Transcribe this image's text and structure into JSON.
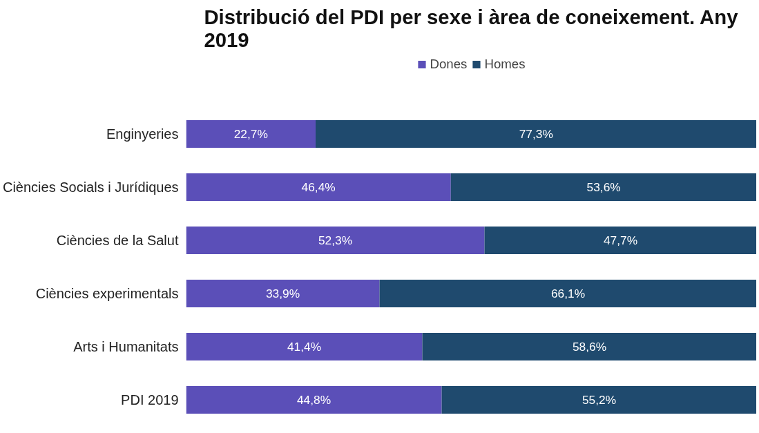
{
  "chart_data": {
    "type": "bar",
    "orientation": "horizontal",
    "stacked": true,
    "title": "Distribució del PDI per sexe i àrea de coneixement. Any 2019",
    "categories": [
      "Enginyeries",
      "Ciències Socials i Jurídiques",
      "Ciències de la Salut",
      "Ciències experimentals",
      "Arts i Humanitats",
      "PDI 2019"
    ],
    "series": [
      {
        "name": "Dones",
        "color": "#5b4fb8",
        "values": [
          22.7,
          46.4,
          52.3,
          33.9,
          41.4,
          44.8
        ],
        "value_labels": [
          "22,7%",
          "46,4%",
          "52,3%",
          "33,9%",
          "41,4%",
          "44,8%"
        ]
      },
      {
        "name": "Homes",
        "color": "#1f4a6e",
        "values": [
          77.3,
          53.6,
          47.7,
          66.1,
          58.6,
          55.2
        ],
        "value_labels": [
          "77,3%",
          "53,6%",
          "47,7%",
          "66,1%",
          "58,6%",
          "55,2%"
        ]
      }
    ],
    "xlim": [
      0,
      100
    ],
    "tick_labels": "y",
    "grid": false,
    "legend": "top"
  }
}
